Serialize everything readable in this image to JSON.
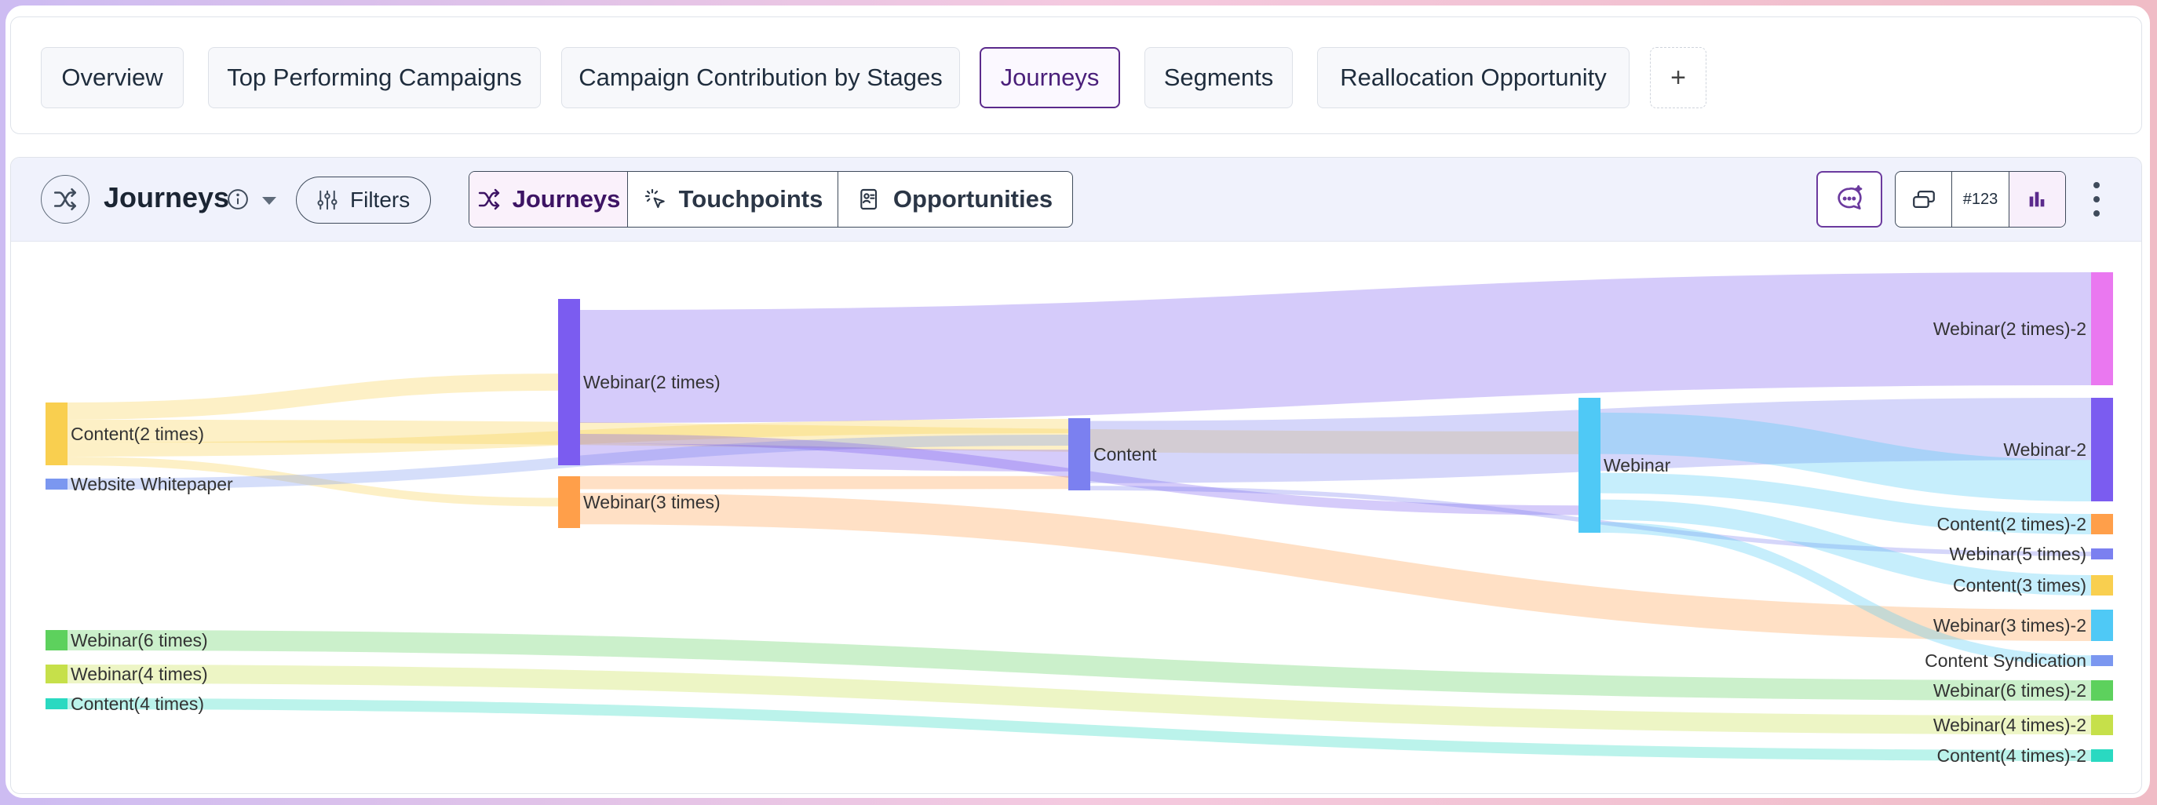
{
  "top_tabs": [
    {
      "label": "Overview",
      "active": false
    },
    {
      "label": "Top Performing Campaigns",
      "active": false
    },
    {
      "label": "Campaign Contribution by Stages",
      "active": false
    },
    {
      "label": "Journeys",
      "active": true
    },
    {
      "label": "Segments",
      "active": false
    },
    {
      "label": "Reallocation Opportunity",
      "active": false
    }
  ],
  "add_tab_label": "+",
  "panel": {
    "title": "Journeys",
    "filters_label": "Filters",
    "view_tabs": [
      {
        "label": "Journeys",
        "icon": "shuffle-icon",
        "active": true
      },
      {
        "label": "Touchpoints",
        "icon": "click-icon",
        "active": false
      },
      {
        "label": "Opportunities",
        "icon": "contact-card-icon",
        "active": false
      }
    ],
    "number_format_label": "#123"
  },
  "colors": {
    "accent": "#5b2a8c",
    "header_bg": "#f0f2fc"
  },
  "chart_data": {
    "type": "sankey",
    "title": "",
    "nodes": [
      {
        "id": "c2",
        "label": "Content(2 times)",
        "color": "#f9cf4f"
      },
      {
        "id": "ww",
        "label": "Website Whitepaper",
        "color": "#7b97f0"
      },
      {
        "id": "w6",
        "label": "Webinar(6 times)",
        "color": "#5dd15d"
      },
      {
        "id": "w4",
        "label": "Webinar(4 times)",
        "color": "#c6e04a"
      },
      {
        "id": "c4",
        "label": "Content(4 times)",
        "color": "#2ad9c1"
      },
      {
        "id": "w2",
        "label": "Webinar(2 times)",
        "color": "#7b5cf0"
      },
      {
        "id": "w3",
        "label": "Webinar(3 times)",
        "color": "#ff9f4a"
      },
      {
        "id": "co",
        "label": "Content",
        "color": "#7b80f0"
      },
      {
        "id": "we",
        "label": "Webinar",
        "color": "#4fc9f6"
      },
      {
        "id": "w2b",
        "label": "Webinar(2 times)-2",
        "color": "#ea78f0"
      },
      {
        "id": "web2",
        "label": "Webinar-2",
        "color": "#7b5cf0"
      },
      {
        "id": "c2b",
        "label": "Content(2 times)-2",
        "color": "#ff9f4a"
      },
      {
        "id": "w5",
        "label": "Webinar(5 times)",
        "color": "#7b80f0"
      },
      {
        "id": "c3",
        "label": "Content(3 times)",
        "color": "#f9cf4f"
      },
      {
        "id": "w3b",
        "label": "Webinar(3 times)-2",
        "color": "#4fc9f6"
      },
      {
        "id": "cs",
        "label": "Content Syndication",
        "color": "#7b97f0"
      },
      {
        "id": "w6b",
        "label": "Webinar(6 times)-2",
        "color": "#5dd15d"
      },
      {
        "id": "w4b",
        "label": "Webinar(4 times)-2",
        "color": "#c6e04a"
      },
      {
        "id": "c4b",
        "label": "Content(4 times)-2",
        "color": "#2ad9c1"
      }
    ],
    "links": [
      {
        "source": "c2",
        "target": "w2",
        "value": 6
      },
      {
        "source": "c2",
        "target": "we",
        "value": 8
      },
      {
        "source": "c2",
        "target": "co",
        "value": 5
      },
      {
        "source": "c2",
        "target": "w3",
        "value": 3
      },
      {
        "source": "ww",
        "target": "co",
        "value": 4
      },
      {
        "source": "w2",
        "target": "w2b",
        "value": 56
      },
      {
        "source": "w2",
        "target": "we",
        "value": 4
      },
      {
        "source": "w2",
        "target": "co",
        "value": 9
      },
      {
        "source": "w3",
        "target": "co",
        "value": 5
      },
      {
        "source": "w3",
        "target": "w3b",
        "value": 15
      },
      {
        "source": "co",
        "target": "web2",
        "value": 30
      },
      {
        "source": "co",
        "target": "w5",
        "value": 2
      },
      {
        "source": "we",
        "target": "web2",
        "value": 20
      },
      {
        "source": "we",
        "target": "c2b",
        "value": 8
      },
      {
        "source": "we",
        "target": "c3",
        "value": 7
      },
      {
        "source": "we",
        "target": "cs",
        "value": 3
      },
      {
        "source": "w6",
        "target": "w6b",
        "value": 8
      },
      {
        "source": "w4",
        "target": "w4b",
        "value": 7
      },
      {
        "source": "c4",
        "target": "c4b",
        "value": 4
      }
    ]
  }
}
